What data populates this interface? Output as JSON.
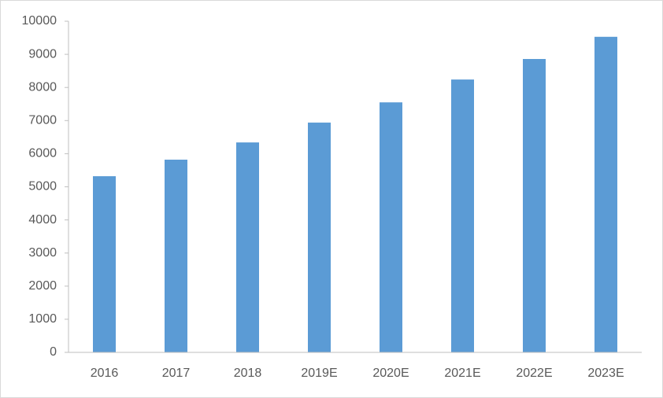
{
  "chart_data": {
    "type": "bar",
    "categories": [
      "2016",
      "2017",
      "2018",
      "2019E",
      "2020E",
      "2021E",
      "2022E",
      "2023E"
    ],
    "values": [
      5320,
      5820,
      6340,
      6940,
      7550,
      8240,
      8860,
      9530
    ],
    "color": "#5b9bd5",
    "ylim": [
      0,
      10000
    ],
    "yticks": [
      0,
      1000,
      2000,
      3000,
      4000,
      5000,
      6000,
      7000,
      8000,
      9000,
      10000
    ],
    "grid": false
  }
}
